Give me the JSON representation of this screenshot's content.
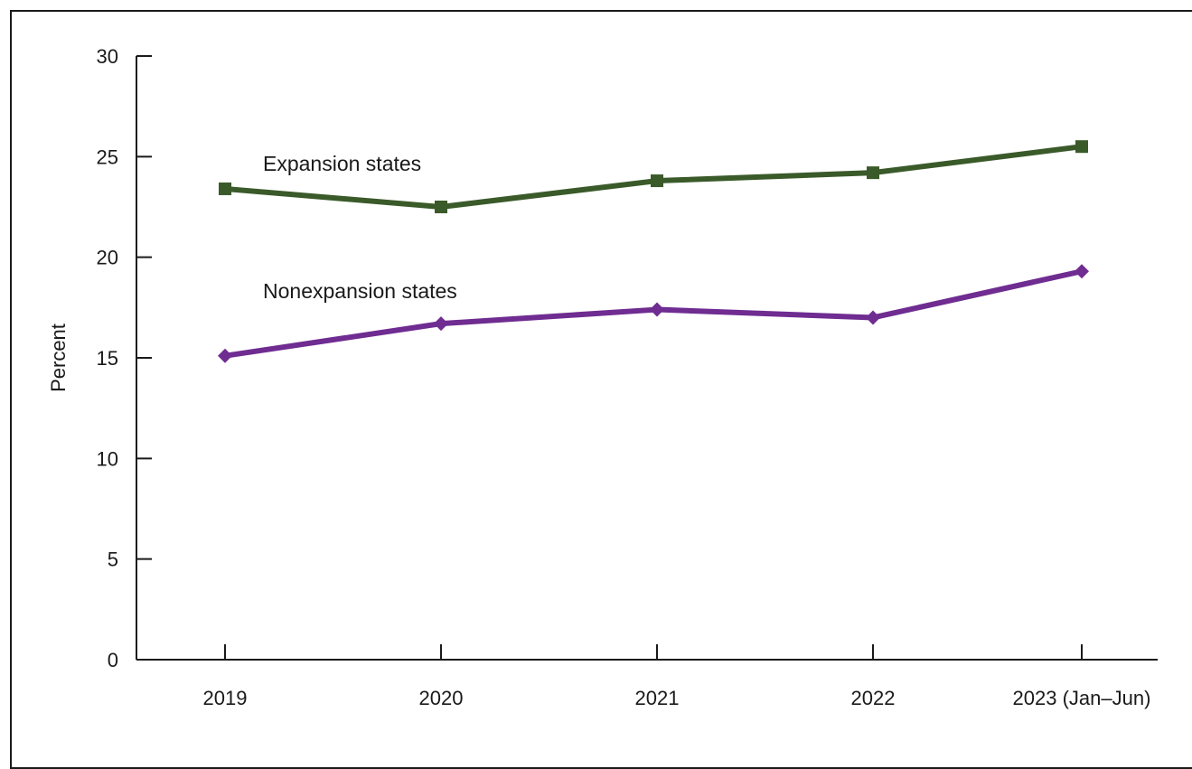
{
  "chart_data": {
    "type": "line",
    "title": "",
    "xlabel": "",
    "ylabel": "Percent",
    "ylim": [
      0,
      30
    ],
    "yticks": [
      0,
      5,
      10,
      15,
      20,
      25,
      30
    ],
    "categories": [
      "2019",
      "2020",
      "2021",
      "2022",
      "2023 (Jan–Jun)"
    ],
    "grid": false,
    "legend": "inline labels",
    "series": [
      {
        "name": "Expansion states",
        "values": [
          23.4,
          22.5,
          23.8,
          24.2,
          25.5
        ],
        "color": "#3a5a2a",
        "marker": "square"
      },
      {
        "name": "Nonexpansion states",
        "values": [
          15.1,
          16.7,
          17.4,
          17.0,
          19.3
        ],
        "color": "#6f2c91",
        "marker": "diamond"
      }
    ]
  }
}
